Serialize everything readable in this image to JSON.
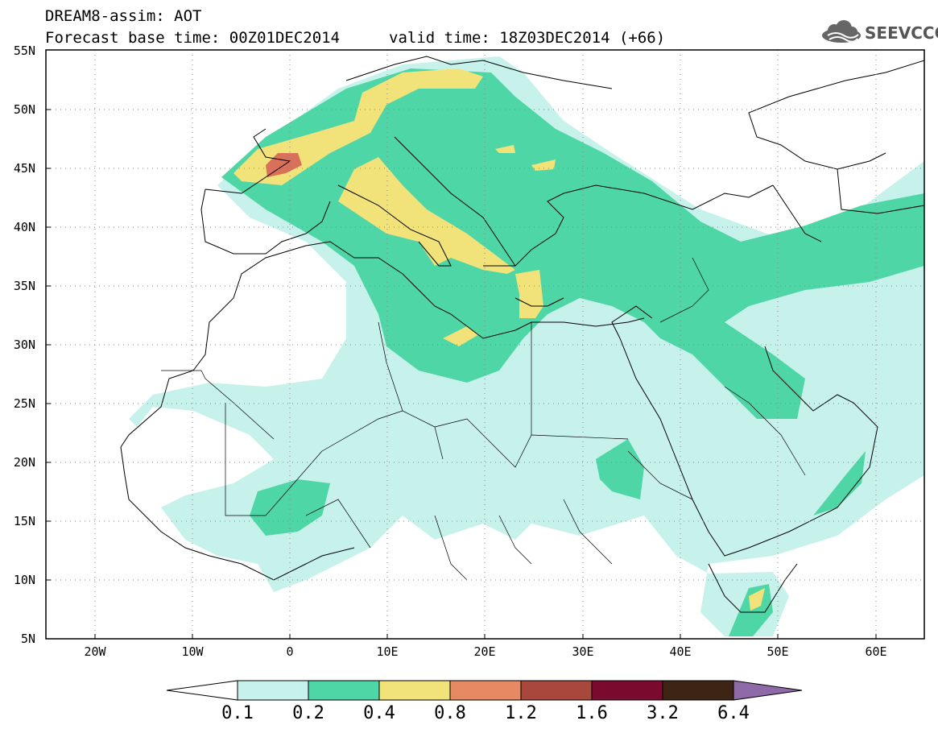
{
  "title": {
    "line1": "DREAM8-assim: AOT",
    "line2": "Forecast base time: 00Z01DEC2014",
    "valid": "valid time: 18Z03DEC2014 (+66)"
  },
  "logo": {
    "text": "SEEVCCC",
    "icon": "cloud-icon"
  },
  "map": {
    "lon_range": [
      -25,
      65
    ],
    "lat_range": [
      5,
      55
    ],
    "grid": "dotted",
    "lat_ticks": [
      "55N",
      "50N",
      "45N",
      "40N",
      "35N",
      "30N",
      "25N",
      "20N",
      "15N",
      "10N",
      "5N"
    ],
    "lon_ticks": [
      "20W",
      "10W",
      "0",
      "10E",
      "20E",
      "30E",
      "40E",
      "50E",
      "60E"
    ]
  },
  "colorbar": {
    "labels": [
      "0.1",
      "0.2",
      "0.4",
      "0.8",
      "1.2",
      "1.6",
      "3.2",
      "6.4"
    ],
    "colors": [
      "#c7f2ec",
      "#4fd6a7",
      "#f2e27a",
      "#e58a62",
      "#a8483d",
      "#7a0a2e",
      "#3d2414",
      "#8e6aa8"
    ],
    "extend": "both"
  }
}
